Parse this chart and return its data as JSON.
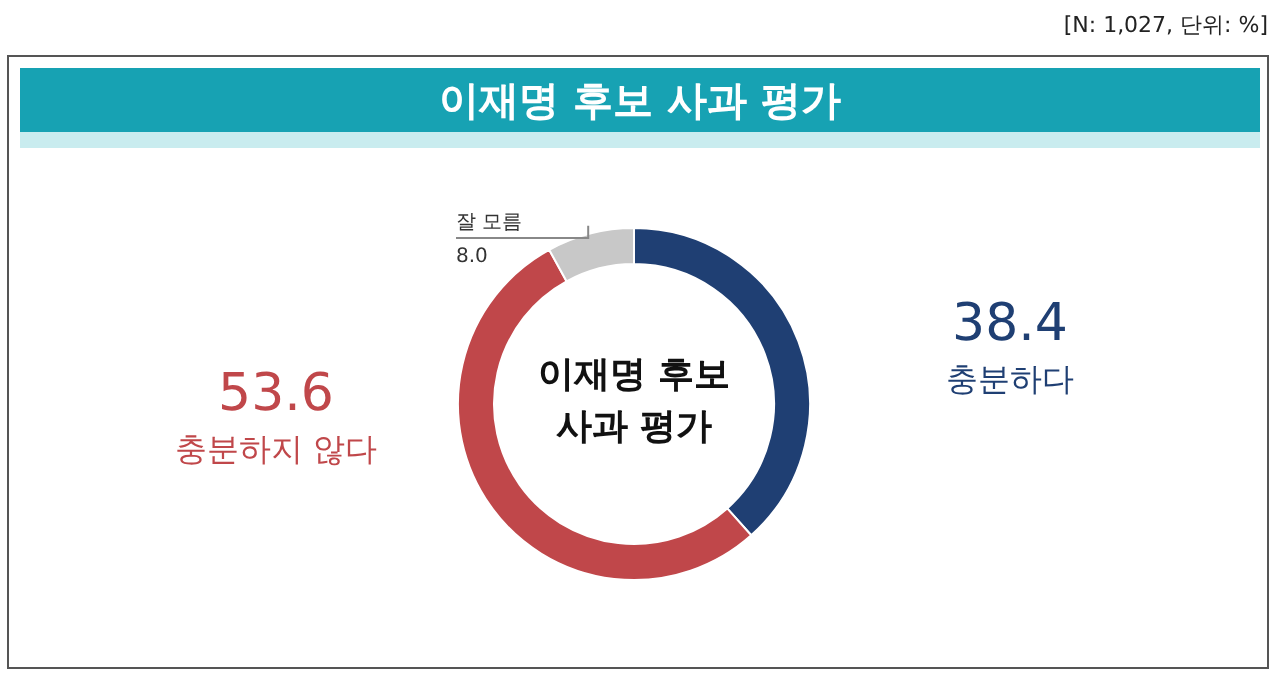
{
  "chart_data": {
    "type": "donut",
    "title": "이재명 후보 사과 평가",
    "categories": [
      "충분하다",
      "충분하지 않다",
      "잘 모름"
    ],
    "values": [
      38.4,
      53.6,
      8.0
    ],
    "colors": [
      "#1f3f73",
      "#c0474a",
      "#c8c8c8"
    ],
    "value_labels": [
      "38.4",
      "53.6",
      "8.0"
    ],
    "annotations": [
      "[N: 1,027, 단위: %]",
      "이재명 후보\n사과 평가"
    ]
  }
}
